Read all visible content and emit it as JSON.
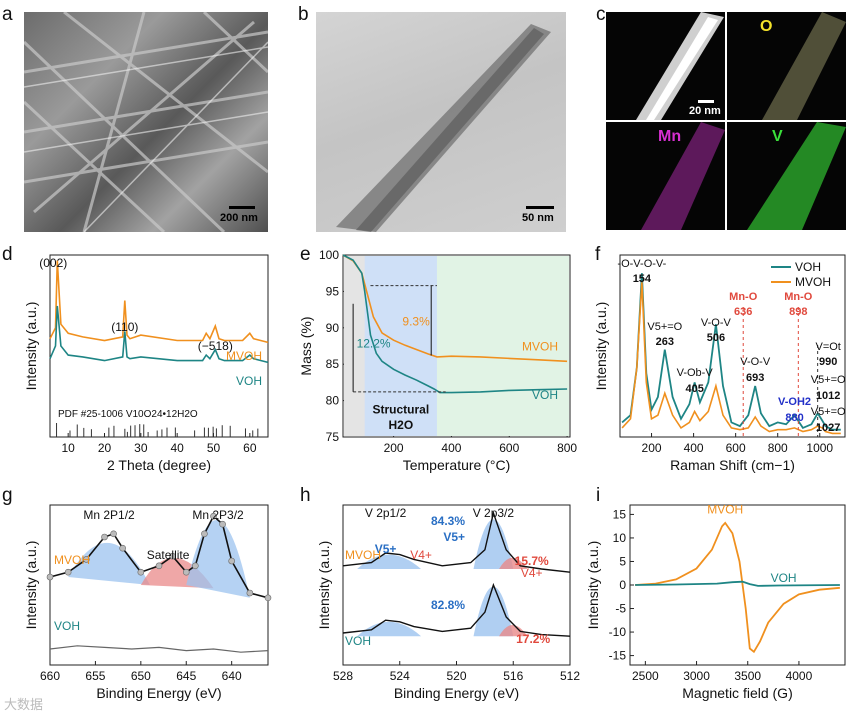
{
  "panels": {
    "a": {
      "label": "a",
      "scale": "200 nm"
    },
    "b": {
      "label": "b",
      "scale": "50 nm"
    },
    "c": {
      "label": "c",
      "scale": "20 nm",
      "maps": [
        "O",
        "Mn",
        "V"
      ],
      "map_colors": {
        "O": "#f4e22a",
        "Mn": "#d72fd1",
        "V": "#3adf3a"
      }
    }
  },
  "watermark": "大数据",
  "chart_data": [
    {
      "id": "d",
      "type": "line",
      "label": "d",
      "xlabel": "2 Theta (degree)",
      "ylabel": "Intensity (a.u.)",
      "xlim": [
        5,
        65
      ],
      "xticks": [
        10,
        20,
        30,
        40,
        50,
        60
      ],
      "series": [
        {
          "name": "MVOH",
          "color": "#f0901e",
          "x": [
            5,
            6.5,
            7.0,
            8,
            10,
            14,
            20,
            25,
            25.6,
            26.2,
            27,
            30,
            40,
            47,
            48,
            49,
            50.5,
            51.5,
            53,
            58,
            60,
            61,
            65
          ],
          "values": [
            0.54,
            0.6,
            0.97,
            0.62,
            0.57,
            0.55,
            0.53,
            0.55,
            0.75,
            0.56,
            0.54,
            0.56,
            0.53,
            0.53,
            0.57,
            0.54,
            0.61,
            0.54,
            0.53,
            0.53,
            0.57,
            0.54,
            0.52
          ]
        },
        {
          "name": "VOH",
          "color": "#1e8585",
          "x": [
            5,
            6.5,
            7.0,
            8,
            10,
            14,
            20,
            25,
            25.6,
            26.2,
            27,
            30,
            40,
            47,
            48,
            49,
            50.5,
            51.5,
            53,
            58,
            60,
            61,
            65
          ],
          "values": [
            0.43,
            0.5,
            0.72,
            0.5,
            0.45,
            0.44,
            0.42,
            0.44,
            0.58,
            0.44,
            0.43,
            0.44,
            0.42,
            0.42,
            0.45,
            0.43,
            0.48,
            0.43,
            0.42,
            0.42,
            0.45,
            0.43,
            0.41
          ]
        }
      ],
      "pdf_label": "PDF #25-1006   V10O24•12H2O",
      "pdf_lines": [
        6.8,
        10.5,
        12.5,
        14.3,
        16.4,
        21.2,
        22.6,
        25.6,
        26.3,
        27.2,
        28.4,
        29.7,
        30.8,
        32.0,
        34.5,
        35.8,
        37.2,
        39.5,
        44.8,
        47.5,
        48.6,
        49.9,
        50.8,
        52.4,
        54.6,
        58.8,
        60.8,
        62.2
      ],
      "annotations": [
        "(002)",
        "(110)",
        "(−518)"
      ]
    },
    {
      "id": "e",
      "type": "line",
      "label": "e",
      "xlabel": "Temperature (°C)",
      "ylabel": "Mass (%)",
      "xlim": [
        25,
        810
      ],
      "ylim": [
        75,
        100
      ],
      "xticks": [
        200,
        400,
        600,
        800
      ],
      "yticks": [
        75,
        80,
        85,
        90,
        95,
        100
      ],
      "series": [
        {
          "name": "MVOH",
          "color": "#f0901e",
          "x": [
            25,
            60,
            90,
            110,
            130,
            160,
            200,
            240,
            280,
            320,
            350,
            400,
            500,
            600,
            700,
            800
          ],
          "values": [
            100,
            99.2,
            97.5,
            94.5,
            91.5,
            89.3,
            88.3,
            87.6,
            87.0,
            86.4,
            86.0,
            86.1,
            86.0,
            85.8,
            85.6,
            85.4
          ]
        },
        {
          "name": "VOH",
          "color": "#1e8585",
          "x": [
            25,
            60,
            90,
            100,
            110,
            120,
            140,
            160,
            200,
            240,
            280,
            320,
            340,
            360,
            400,
            500,
            600,
            700,
            800
          ],
          "values": [
            100,
            99.3,
            97.5,
            95.0,
            92.0,
            89.0,
            86.5,
            85.4,
            84.3,
            83.5,
            82.8,
            82.0,
            81.6,
            81.1,
            81.1,
            81.2,
            81.4,
            81.5,
            81.6
          ]
        }
      ],
      "annotations": [
        "9.3%",
        "12.2%",
        "Structural",
        "H2O"
      ]
    },
    {
      "id": "f",
      "type": "line",
      "label": "f",
      "xlabel": "Raman Shift (cm−1)",
      "ylabel": "Intensity (a.u.)",
      "xlim": [
        50,
        1120
      ],
      "xticks": [
        200,
        400,
        600,
        800,
        1000
      ],
      "series": [
        {
          "name": "VOH",
          "color": "#1e8585",
          "x": [
            60,
            100,
            130,
            154,
            175,
            200,
            230,
            263,
            300,
            340,
            380,
            405,
            430,
            470,
            506,
            540,
            580,
            620,
            660,
            693,
            720,
            760,
            800,
            840,
            880,
            920,
            960,
            990,
            1012,
            1027,
            1060,
            1100
          ],
          "values": [
            0.08,
            0.12,
            0.38,
            0.9,
            0.35,
            0.15,
            0.22,
            0.48,
            0.22,
            0.1,
            0.18,
            0.3,
            0.19,
            0.3,
            0.62,
            0.28,
            0.08,
            0.06,
            0.12,
            0.28,
            0.13,
            0.06,
            0.08,
            0.07,
            0.12,
            0.05,
            0.07,
            0.13,
            0.09,
            0.06,
            0.04,
            0.04
          ]
        },
        {
          "name": "MVOH",
          "color": "#f0901e",
          "x": [
            60,
            100,
            130,
            154,
            175,
            200,
            230,
            263,
            300,
            340,
            380,
            405,
            430,
            470,
            506,
            540,
            580,
            620,
            660,
            693,
            720,
            760,
            800,
            840,
            880,
            920,
            960,
            990,
            1012,
            1027,
            1060,
            1100
          ],
          "values": [
            0.05,
            0.1,
            0.38,
            0.85,
            0.3,
            0.1,
            0.12,
            0.24,
            0.12,
            0.05,
            0.08,
            0.14,
            0.09,
            0.14,
            0.28,
            0.12,
            0.05,
            0.04,
            0.05,
            0.11,
            0.06,
            0.03,
            0.04,
            0.04,
            0.05,
            0.03,
            0.04,
            0.06,
            0.05,
            0.03,
            0.02,
            0.02
          ]
        }
      ],
      "annotations": [
        "-O-V-O-V-",
        "154",
        "V5+=O",
        "263",
        "V-Ob-V",
        "405",
        "V-O-V",
        "506",
        "Mn-O",
        "636",
        "Mn-O",
        "898",
        "V-O-V",
        "693",
        "V-OH2",
        "880",
        "V=Ot",
        "990",
        "V5+=O",
        "1012",
        "V5+=O",
        "1027"
      ]
    },
    {
      "id": "g",
      "type": "line",
      "label": "g",
      "xlabel": "Binding Energy (eV)",
      "ylabel": "Intensity (a.u.)",
      "xlim": [
        660,
        636
      ],
      "xreverse": true,
      "xticks": [
        660,
        655,
        650,
        645,
        640
      ],
      "series": [
        {
          "name": "MVOH",
          "color": "#111111",
          "x": [
            660,
            658,
            656,
            654,
            653,
            652,
            650,
            648,
            646.5,
            645,
            644,
            643,
            642,
            641,
            640,
            638,
            636
          ],
          "values": [
            0.55,
            0.58,
            0.66,
            0.8,
            0.82,
            0.73,
            0.58,
            0.62,
            0.68,
            0.58,
            0.62,
            0.82,
            0.93,
            0.88,
            0.65,
            0.45,
            0.42
          ]
        },
        {
          "name": "VOH",
          "color": "#666666",
          "x": [
            660,
            657,
            654,
            651,
            648,
            645,
            642,
            639,
            636
          ],
          "values": [
            0.1,
            0.12,
            0.11,
            0.1,
            0.11,
            0.09,
            0.1,
            0.08,
            0.09
          ]
        }
      ],
      "annotations": [
        "Mn 2P1/2",
        "Mn 2P3/2",
        "Satellite"
      ]
    },
    {
      "id": "h",
      "type": "line",
      "label": "h",
      "xlabel": "Binding Energy (eV)",
      "ylabel": "Intensity (a.u.)",
      "xlim": [
        528,
        512
      ],
      "xreverse": true,
      "xticks": [
        528,
        524,
        520,
        516,
        512
      ],
      "series": [
        {
          "name": "MVOH",
          "color": "#111111",
          "x": [
            528,
            526,
            525,
            524,
            523,
            521,
            519,
            518,
            517.4,
            516.5,
            515.5,
            514,
            512
          ],
          "values": [
            0.62,
            0.64,
            0.7,
            0.69,
            0.66,
            0.62,
            0.64,
            0.72,
            0.95,
            0.72,
            0.62,
            0.6,
            0.58
          ]
        },
        {
          "name": "VOH",
          "color": "#111111",
          "x": [
            528,
            526,
            525,
            524,
            523,
            521,
            519,
            518,
            517.4,
            516.5,
            515.5,
            514,
            512
          ],
          "values": [
            0.2,
            0.22,
            0.28,
            0.27,
            0.24,
            0.21,
            0.23,
            0.33,
            0.5,
            0.3,
            0.21,
            0.19,
            0.18
          ]
        }
      ],
      "annotations": [
        "V 2p1/2",
        "V 2p3/2",
        "84.3%",
        "V5+",
        "V4+",
        "15.7%",
        "82.8%",
        "17.2%"
      ]
    },
    {
      "id": "i",
      "type": "line",
      "label": "i",
      "xlabel": "Magnetic field (G)",
      "ylabel": "Intensity (a.u.)",
      "xlim": [
        2350,
        4450
      ],
      "ylim": [
        -17,
        17
      ],
      "xticks": [
        2500,
        3000,
        3500,
        4000
      ],
      "yticks": [
        -15,
        -10,
        -5,
        0,
        5,
        10,
        15
      ],
      "series": [
        {
          "name": "MVOH",
          "color": "#f0901e",
          "x": [
            2400,
            2600,
            2800,
            3000,
            3150,
            3250,
            3280,
            3350,
            3420,
            3480,
            3520,
            3560,
            3620,
            3700,
            3850,
            4000,
            4200,
            4400
          ],
          "values": [
            0,
            0.3,
            1.2,
            3.5,
            7.5,
            12.5,
            13.2,
            11,
            5,
            -5,
            -13.5,
            -14.2,
            -12,
            -8,
            -4,
            -2,
            -1,
            -0.6
          ]
        },
        {
          "name": "VOH",
          "color": "#1e8585",
          "x": [
            2400,
            2800,
            3200,
            3350,
            3450,
            3520,
            3600,
            3800,
            4400
          ],
          "values": [
            0,
            0.1,
            0.3,
            0.6,
            0.7,
            0.2,
            -0.2,
            -0.1,
            0
          ]
        }
      ],
      "annotations": [
        "MVOH",
        "VOH"
      ]
    }
  ]
}
